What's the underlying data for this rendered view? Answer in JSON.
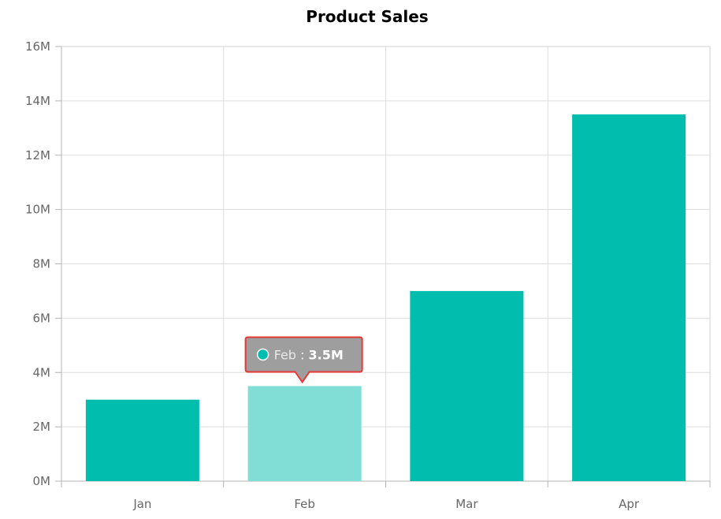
{
  "chart_data": {
    "type": "bar",
    "title": "Product Sales",
    "xlabel": "",
    "ylabel": "",
    "categories": [
      "Jan",
      "Feb",
      "Mar",
      "Apr"
    ],
    "series": [
      {
        "values": [
          3000000,
          3500000,
          7000000,
          13500000
        ]
      }
    ],
    "ylim": [
      0,
      16000000
    ],
    "y_ticks": [
      "0M",
      "2M",
      "4M",
      "6M",
      "8M",
      "10M",
      "12M",
      "14M",
      "16M"
    ],
    "grid": true,
    "bar_color": "#00bdae",
    "highlight_color": "#80ded6",
    "tooltip": {
      "category": "Feb",
      "separator": " : ",
      "value_label": "3.5M",
      "background": "#9e9e9e",
      "border": "#e53935"
    }
  }
}
